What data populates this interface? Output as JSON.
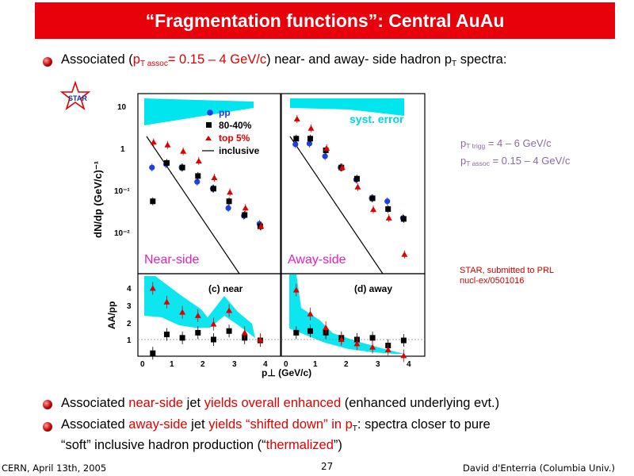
{
  "slide": {
    "title": "“Fragmentation functions”: Central AuAu",
    "bullet1": {
      "prefix": "Associated (",
      "p": "p",
      "psub": "T assoc",
      "range": "= 0.15 – 4 GeV/c",
      "rest1": ") near- and away- side hadron ",
      "pT": "p",
      "pTsub": "T",
      "rest2": " spectra:"
    },
    "bullet2": {
      "t1": "Associated ",
      "t2": "near-side",
      "t3": " jet ",
      "t4": "yields overall enhanced",
      "t5": " (enhanced underlying evt.)"
    },
    "bullet3": {
      "t1": "Associated ",
      "t2": "away-side",
      "t3": " jet ",
      "t4": "yields “shifted down” in p",
      "t4sub": "T",
      "t5": ": spectra closer to pure",
      "line2a": "“soft” inclusive hadron production (“",
      "line2b": "thermalized",
      "line2c": "”)"
    },
    "params": {
      "l1p": "p",
      "l1sub": "T trigg",
      "l1val": " = 4 – 6 GeV/c",
      "l2p": "p",
      "l2sub": "T assoc",
      "l2val": " = 0.15 – 4 GeV/c"
    },
    "reference": {
      "line1": "STAR, submitted to PRL",
      "line2": "nucl-ex/0501016"
    },
    "footer": {
      "left": "CERN, April 13th, 2005",
      "center": "27",
      "right": "David d'Enterria (Columbia Univ.)"
    },
    "logo_text": "STAR"
  },
  "chart_data": {
    "type": "scatter",
    "panels": {
      "near_label": "Near-side",
      "away_label": "Away-side",
      "ratio_near_label": "(c) near",
      "ratio_away_label": "(d) away",
      "syst_label": "syst. error"
    },
    "legend": [
      "pp",
      "80-40%",
      "top 5%",
      "inclusive"
    ],
    "colors": {
      "pp": "#1f3fe0",
      "peripheral": "#000000",
      "central": "#e00000",
      "band": "#00e5ee"
    },
    "top_y_ticks": [
      "10",
      "1",
      "10⁻¹",
      "10⁻²"
    ],
    "ratio_y_ticks": [
      "1",
      "2",
      "3",
      "4"
    ],
    "x_ticks": [
      "0",
      "1",
      "2",
      "3",
      "4"
    ],
    "ylabel_top": "dN/dp (GeV/c)⁻¹",
    "ylabel_ratio": "AA/pp",
    "xlabel": "p⊥ (GeV/c)",
    "x": [
      0.3,
      0.75,
      1.25,
      1.75,
      2.25,
      2.75,
      3.25,
      3.75
    ],
    "near": {
      "pp": [
        0.35,
        0.42,
        0.35,
        0.16,
        0.11,
        0.038,
        0.025,
        0.016
      ],
      "peripheral": [
        0.055,
        0.45,
        0.35,
        0.22,
        0.11,
        0.055,
        0.026,
        0.014
      ],
      "central": [
        1.4,
        1.2,
        0.85,
        0.5,
        0.2,
        0.09,
        0.038,
        0.014
      ]
    },
    "away": {
      "pp": [
        1.25,
        1.3,
        0.65,
        0.35,
        0.18,
        0.065,
        0.055,
        0.022
      ],
      "peripheral": [
        1.7,
        1.7,
        0.9,
        0.35,
        0.19,
        0.065,
        0.036,
        0.021
      ],
      "central": [
        5.0,
        3.0,
        1.0,
        0.35,
        0.12,
        0.035,
        0.022,
        0.003
      ]
    },
    "ratio_near": {
      "central": [
        4.0,
        3.2,
        2.6,
        2.4,
        1.9,
        2.7,
        1.4,
        1.0
      ],
      "peripheral": [
        0.2,
        1.3,
        1.1,
        1.4,
        1.0,
        1.5,
        1.1,
        0.95
      ]
    },
    "ratio_away": {
      "central": [
        3.9,
        2.5,
        1.7,
        1.0,
        0.75,
        0.55,
        0.4,
        0.05
      ],
      "peripheral": [
        1.4,
        1.5,
        1.4,
        1.1,
        1.0,
        1.1,
        0.65,
        0.95
      ]
    }
  }
}
